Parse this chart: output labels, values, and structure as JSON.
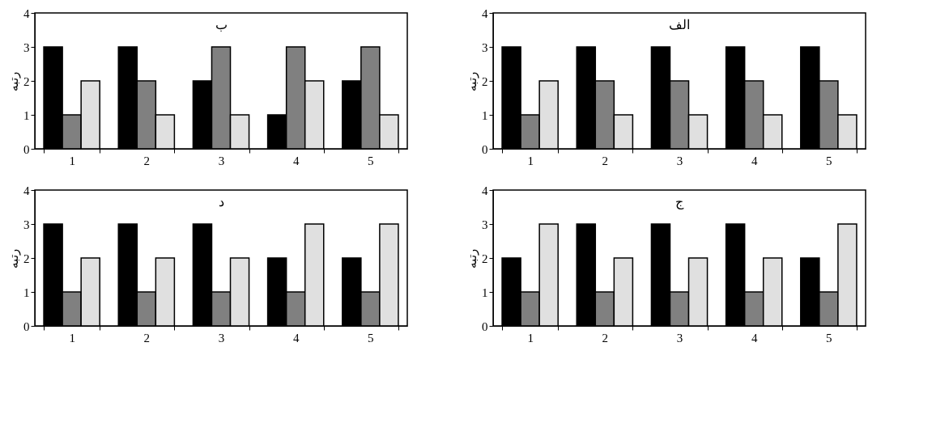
{
  "chart_data": [
    {
      "type": "bar",
      "title": "ب",
      "ylabel": "رتبه",
      "categories": [
        "1",
        "2",
        "3",
        "4",
        "5"
      ],
      "ylim": [
        0,
        4
      ],
      "yticks": [
        0,
        1,
        2,
        3,
        4
      ],
      "grid": false,
      "legend": false,
      "series": [
        {
          "color": "#000000",
          "values": [
            3,
            3,
            2,
            1,
            2
          ]
        },
        {
          "color": "#808080",
          "values": [
            1,
            2,
            3,
            3,
            3
          ]
        },
        {
          "color": "#e0e0e0",
          "values": [
            2,
            1,
            1,
            2,
            1
          ]
        }
      ]
    },
    {
      "type": "bar",
      "title": "الف",
      "ylabel": "رتبه",
      "categories": [
        "1",
        "2",
        "3",
        "4",
        "5"
      ],
      "ylim": [
        0,
        4
      ],
      "yticks": [
        0,
        1,
        2,
        3,
        4
      ],
      "grid": false,
      "legend": false,
      "series": [
        {
          "color": "#000000",
          "values": [
            3,
            3,
            3,
            3,
            3
          ]
        },
        {
          "color": "#808080",
          "values": [
            1,
            2,
            2,
            2,
            2
          ]
        },
        {
          "color": "#e0e0e0",
          "values": [
            2,
            1,
            1,
            1,
            1
          ]
        }
      ]
    },
    {
      "type": "bar",
      "title": "د",
      "ylabel": "رتبه",
      "categories": [
        "1",
        "2",
        "3",
        "4",
        "5"
      ],
      "ylim": [
        0,
        4
      ],
      "yticks": [
        0,
        1,
        2,
        3,
        4
      ],
      "grid": false,
      "legend": false,
      "series": [
        {
          "color": "#000000",
          "values": [
            3,
            3,
            3,
            2,
            2
          ]
        },
        {
          "color": "#808080",
          "values": [
            1,
            1,
            1,
            1,
            1
          ]
        },
        {
          "color": "#e0e0e0",
          "values": [
            2,
            2,
            2,
            3,
            3
          ]
        }
      ]
    },
    {
      "type": "bar",
      "title": "ج",
      "ylabel": "رتبه",
      "categories": [
        "1",
        "2",
        "3",
        "4",
        "5"
      ],
      "ylim": [
        0,
        4
      ],
      "yticks": [
        0,
        1,
        2,
        3,
        4
      ],
      "grid": false,
      "legend": false,
      "series": [
        {
          "color": "#000000",
          "values": [
            2,
            3,
            3,
            3,
            2
          ]
        },
        {
          "color": "#808080",
          "values": [
            1,
            1,
            1,
            1,
            1
          ]
        },
        {
          "color": "#e0e0e0",
          "values": [
            3,
            2,
            2,
            2,
            3
          ]
        }
      ]
    }
  ]
}
